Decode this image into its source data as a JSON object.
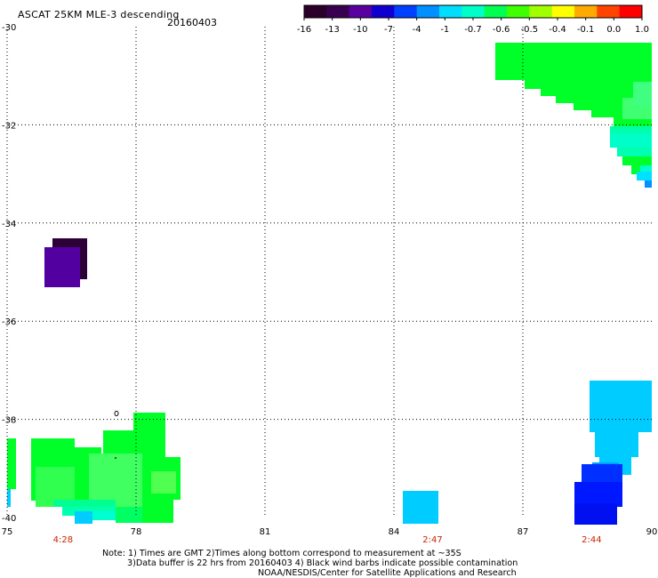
{
  "header": {
    "title": "ASCAT 25KM MLE-3 descending",
    "date": "20160403"
  },
  "colorbar": {
    "tick_labels": [
      "-16",
      "-13",
      "-10",
      "-7",
      "-4",
      "-1",
      "-0.7",
      "-0.6",
      "-0.5",
      "-0.4",
      "-0.1",
      "0.0",
      "1.0"
    ],
    "colors": [
      "#2a002a",
      "#3a0050",
      "#5800a0",
      "#1000d0",
      "#0040ff",
      "#0090ff",
      "#00ddff",
      "#00ffc8",
      "#00ff50",
      "#40ff00",
      "#a0ff00",
      "#ffff00",
      "#ffaa00",
      "#ff4400",
      "#ff0000"
    ]
  },
  "axes": {
    "x_tick_labels": [
      "75",
      "78",
      "81",
      "84",
      "87",
      "90"
    ],
    "y_tick_labels": [
      "-30",
      "-32",
      "-34",
      "-36",
      "-38",
      "-40"
    ],
    "lon_range": [
      75,
      90
    ],
    "lat_range": [
      -40,
      -30
    ]
  },
  "pass_times": [
    {
      "lon": 76.3,
      "label": "4:28"
    },
    {
      "lon": 84.9,
      "label": "2:47"
    },
    {
      "lon": 88.6,
      "label": "2:44"
    }
  ],
  "notes": {
    "line1": "Note: 1) Times are GMT 2)Times along bottom correspond to measurement at ~35S",
    "line2": "3)Data buffer is 22 hrs from 20160403 4) Black wind barbs indicate possible contamination",
    "line3": "NOAA/NESDIS/Center for Satellite Applications and Research"
  },
  "colors": {
    "time_label": "#cc2200",
    "grid": "#000000",
    "purple_dark": "#2e0038",
    "purple": "#5200a0",
    "green": "#00ff28",
    "green_light": "#20ff40",
    "cyan": "#00ccff",
    "blue": "#0018ff"
  }
}
